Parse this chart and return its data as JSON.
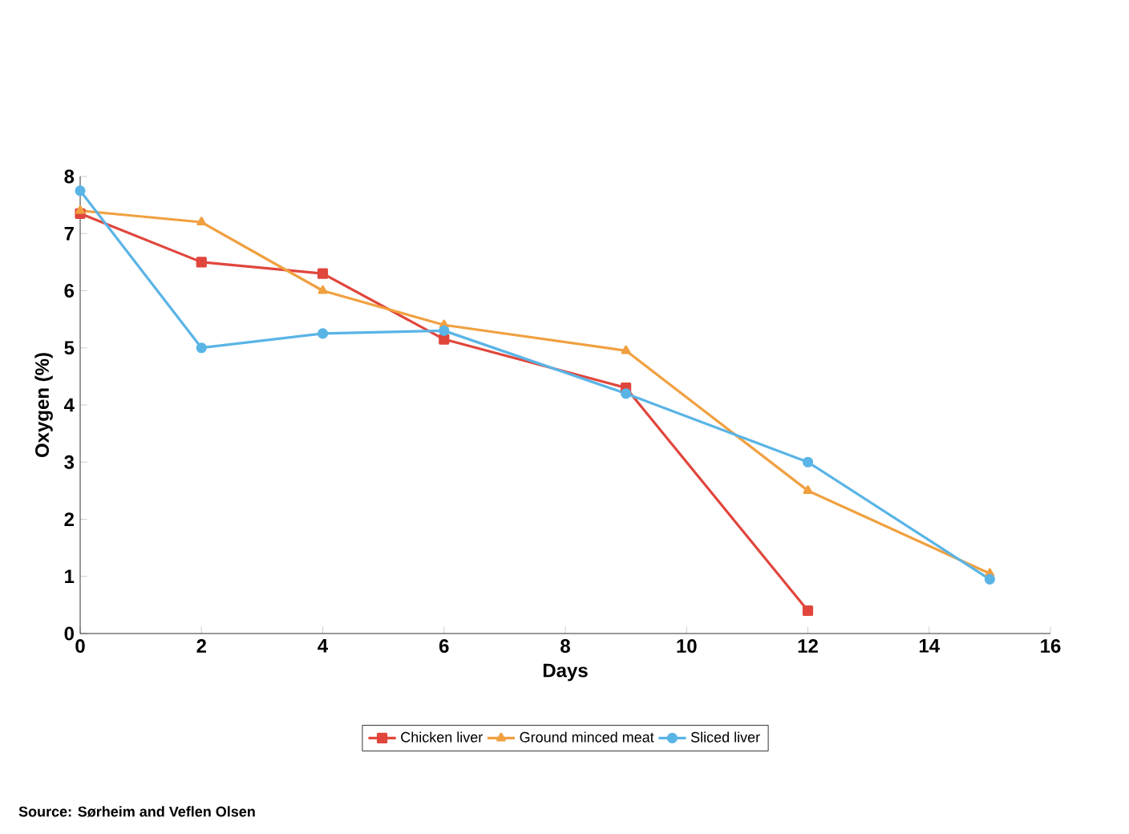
{
  "chart_data": {
    "type": "line",
    "xlabel": "Days",
    "ylabel": "Oxygen (%)",
    "xlim": [
      0,
      16
    ],
    "xticks": [
      0,
      2,
      4,
      6,
      8,
      10,
      12,
      14,
      16
    ],
    "ylim": [
      0,
      8
    ],
    "yticks": [
      0,
      1,
      2,
      3,
      4,
      5,
      6,
      7,
      8
    ],
    "series": [
      {
        "name": "Chicken liver",
        "color": "#e0463c",
        "marker": "square",
        "x": [
          0,
          2,
          4,
          6,
          9,
          12
        ],
        "values": [
          7.35,
          6.5,
          6.3,
          5.15,
          4.3,
          0.4
        ]
      },
      {
        "name": "Ground minced meat",
        "color": "#f0a040",
        "marker": "triangle",
        "x": [
          0,
          2,
          4,
          6,
          9,
          12,
          15
        ],
        "values": [
          7.4,
          7.2,
          6.0,
          5.4,
          4.95,
          2.5,
          1.05
        ]
      },
      {
        "name": "Sliced liver",
        "color": "#5ab4e6",
        "marker": "circle",
        "x": [
          0,
          2,
          4,
          6,
          9,
          12,
          15
        ],
        "values": [
          7.75,
          5.0,
          5.25,
          5.3,
          4.2,
          3.0,
          0.95
        ]
      }
    ],
    "legend": "bottom",
    "grid": false,
    "annotations": [
      "Source: Sørheim and Veflen Olsen"
    ]
  }
}
